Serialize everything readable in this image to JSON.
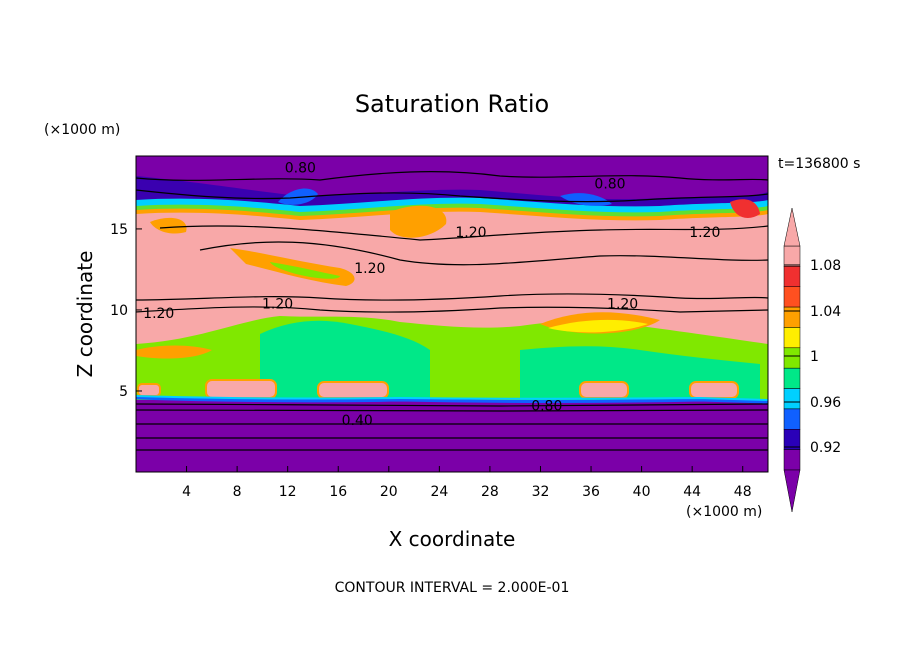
{
  "chart_data": {
    "type": "contour",
    "title": "Saturation Ratio",
    "xlabel": "X coordinate",
    "ylabel": "Z coordinate",
    "x_unit": "(×1000 m)",
    "y_unit": "(×1000 m)",
    "time_label": "t=136800 s",
    "footer": "CONTOUR INTERVAL = 2.000E-01",
    "xlim": [
      0,
      50
    ],
    "ylim": [
      0,
      19.5
    ],
    "x_ticks": [
      4,
      8,
      12,
      16,
      20,
      24,
      28,
      32,
      36,
      40,
      44,
      48
    ],
    "y_ticks": [
      5,
      10,
      15
    ],
    "contour_labels": [
      {
        "text": "0.80",
        "x": 13.0,
        "y": 18.8
      },
      {
        "text": "0.80",
        "x": 37.5,
        "y": 17.8
      },
      {
        "text": "1.20",
        "x": 26.5,
        "y": 14.8
      },
      {
        "text": "1.20",
        "x": 45.0,
        "y": 14.8
      },
      {
        "text": "1.20",
        "x": 18.5,
        "y": 12.6
      },
      {
        "text": "1.20",
        "x": 11.2,
        "y": 10.4
      },
      {
        "text": "1.20",
        "x": 1.8,
        "y": 9.8
      },
      {
        "text": "1.20",
        "x": 38.5,
        "y": 10.4
      },
      {
        "text": "0.80",
        "x": 32.5,
        "y": 4.1
      },
      {
        "text": "0.40",
        "x": 17.5,
        "y": 3.2
      }
    ],
    "colorbar": {
      "labels": [
        "1.08",
        "1.04",
        "1",
        "0.96",
        "0.92"
      ],
      "levels": [
        0.92,
        0.94,
        0.96,
        0.98,
        1.0,
        1.02,
        1.04,
        1.06,
        1.08,
        1.1
      ],
      "colors": [
        "#7B00A8",
        "#2A00B8",
        "#1060FF",
        "#00D0FF",
        "#00E888",
        "#80E800",
        "#FFEE00",
        "#FFA000",
        "#FF5020",
        "#F03030",
        "#F8A8A8"
      ]
    }
  }
}
